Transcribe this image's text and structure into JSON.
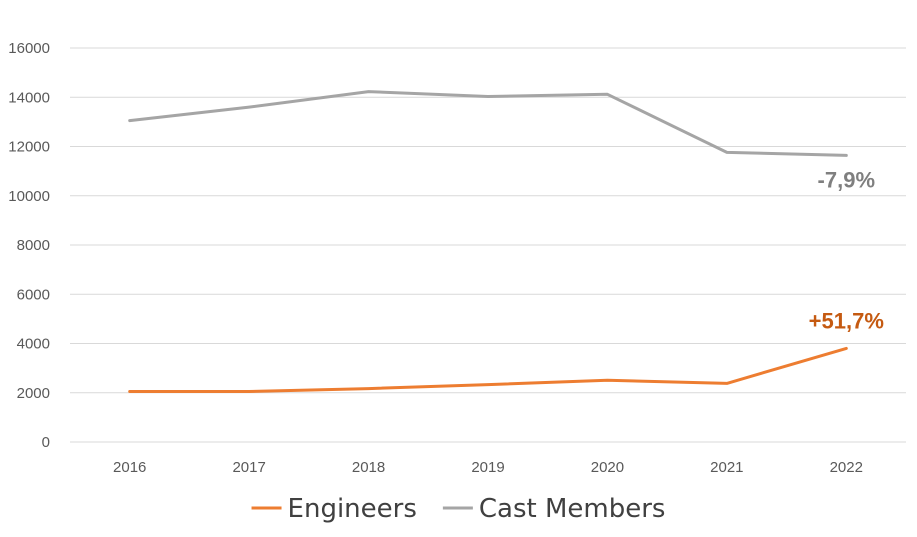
{
  "chart_data": {
    "type": "line",
    "categories": [
      "2016",
      "2017",
      "2018",
      "2019",
      "2020",
      "2021",
      "2022"
    ],
    "series": [
      {
        "name": "Engineers",
        "color": "#ED7D31",
        "values": [
          2050,
          2050,
          2170,
          2330,
          2510,
          2380,
          3800
        ]
      },
      {
        "name": "Cast Members",
        "color": "#A5A5A5",
        "values": [
          13050,
          13600,
          14230,
          14030,
          14120,
          11760,
          11640
        ]
      }
    ],
    "ylim": [
      0,
      16000
    ],
    "yticks": [
      "0",
      "2000",
      "4000",
      "6000",
      "8000",
      "10000",
      "12000",
      "14000",
      "16000"
    ],
    "grid": true,
    "legend_position": "bottom",
    "annotations": [
      {
        "text": "+51,7%",
        "series": "Engineers",
        "color": "#C55A11"
      },
      {
        "text": "-7,9%",
        "series": "Cast Members",
        "color": "#7F7F7F"
      }
    ]
  }
}
